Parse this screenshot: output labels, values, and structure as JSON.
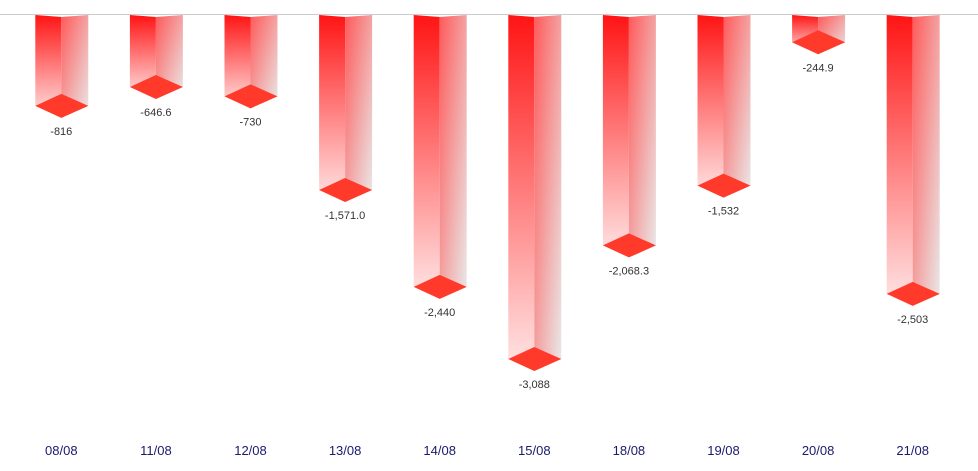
{
  "chart_data": {
    "type": "bar",
    "categories": [
      "08/08",
      "11/08",
      "12/08",
      "13/08",
      "14/08",
      "15/08",
      "18/08",
      "19/08",
      "20/08",
      "21/08"
    ],
    "values": [
      -816,
      -646.6,
      -730,
      -1571.0,
      -2440,
      -3088,
      -2068.3,
      -1532,
      -244.9,
      -2503
    ],
    "value_labels": [
      "-816",
      "-646.6",
      "-730",
      "-1,571.0",
      "-2,440",
      "-3,088",
      "-2,068.3",
      "-1,532",
      "-244.9",
      "-2,503"
    ],
    "ylim": [
      -3088,
      0
    ],
    "grid": false,
    "legend": "none",
    "style": "3d-column-gradient",
    "colors": {
      "bar_top": "#ff1a1a",
      "bar_bottom": "#ffe0e0",
      "bar_side": "#e8e8e8",
      "bar_cap": "#ff3a2a",
      "baseline": "#cccccc",
      "category_text": "#1a1a6e",
      "value_text": "#333333"
    }
  }
}
